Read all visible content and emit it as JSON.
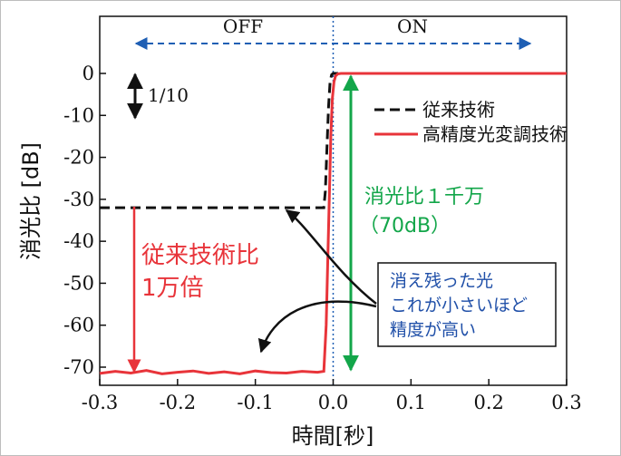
{
  "chart_data": {
    "type": "line",
    "xlabel": "時間[秒]",
    "ylabel": "消光比 [dB]",
    "xlim": [
      -0.3,
      0.3
    ],
    "ylim": [
      -72,
      4
    ],
    "xticks": [
      -0.3,
      -0.2,
      -0.1,
      0.0,
      0.1,
      0.2,
      0.3
    ],
    "xtick_labels": [
      "-0.3",
      "-0.2",
      "-0.1",
      "0.0",
      "0.1",
      "0.2",
      "0.3"
    ],
    "yticks": [
      0,
      -10,
      -20,
      -30,
      -40,
      -50,
      -60,
      -70
    ],
    "ytick_labels": [
      "0",
      "-10",
      "-20",
      "-30",
      "-40",
      "-50",
      "-60",
      "-70"
    ],
    "grid": false,
    "legend_position": "top-right",
    "series": [
      {
        "name": "従来技術",
        "color": "#111111",
        "style": "dashed",
        "x": [
          -0.3,
          -0.012,
          -0.01,
          -0.008,
          -0.006,
          -0.004,
          -0.002,
          0.0,
          0.3
        ],
        "y": [
          -32,
          -32,
          -28,
          -18,
          -8,
          -2,
          -0.3,
          0,
          0
        ]
      },
      {
        "name": "高精度光変調技術",
        "color": "#e8343a",
        "style": "solid",
        "x": [
          -0.3,
          -0.28,
          -0.26,
          -0.24,
          -0.22,
          -0.2,
          -0.18,
          -0.16,
          -0.14,
          -0.12,
          -0.1,
          -0.08,
          -0.06,
          -0.04,
          -0.02,
          -0.012,
          -0.009,
          -0.007,
          -0.005,
          -0.003,
          -0.001,
          0.001,
          0.003,
          0.006,
          0.01,
          0.3
        ],
        "y": [
          -71.5,
          -71,
          -71.4,
          -70.8,
          -71.6,
          -71.2,
          -70.9,
          -71.5,
          -71.1,
          -71.6,
          -70.9,
          -71.3,
          -71.4,
          -71.0,
          -71.2,
          -71.0,
          -60,
          -45,
          -30,
          -15,
          -6,
          -2,
          -0.6,
          -0.1,
          0,
          0
        ]
      }
    ],
    "state_labels": [
      "OFF",
      "ON"
    ],
    "scale_marker": "1/10",
    "annotations": {
      "red": [
        "従来技術比",
        "1万倍"
      ],
      "green": [
        "消光比１千万",
        "（70dB）"
      ],
      "blue_box": [
        "消え残った光",
        "これが小さいほど",
        "精度が高い"
      ]
    }
  }
}
